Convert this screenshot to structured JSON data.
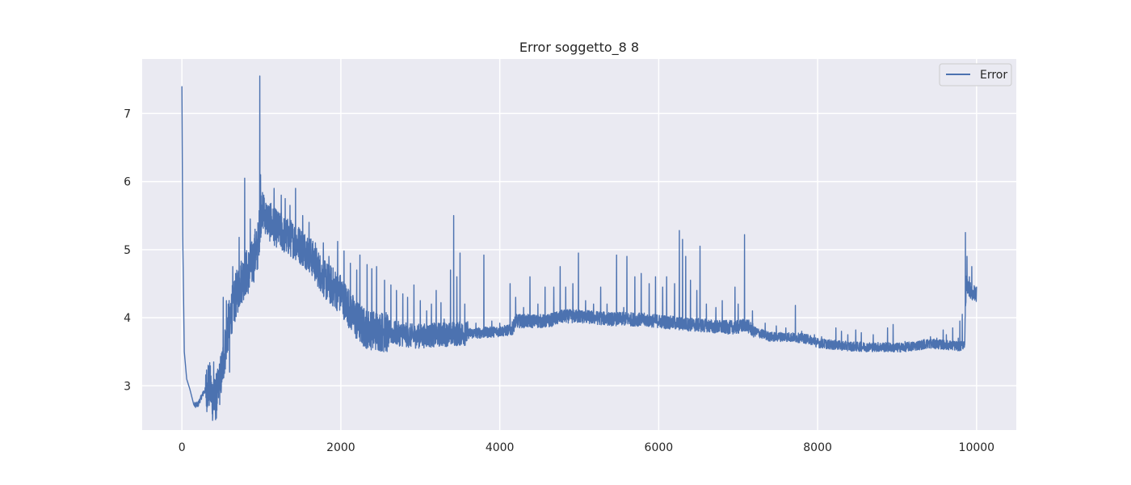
{
  "chart_data": {
    "type": "line",
    "title": "Error soggetto_8 8",
    "xlabel": "",
    "ylabel": "",
    "xlim": [
      -500,
      10500
    ],
    "ylim": [
      2.35,
      7.8
    ],
    "xticks": [
      0,
      2000,
      4000,
      6000,
      8000,
      10000
    ],
    "yticks": [
      3,
      4,
      5,
      6,
      7
    ],
    "grid": true,
    "legend_position": "top-right",
    "colors": {
      "background": "#eaeaf2",
      "grid": "#ffffff",
      "line": "#4c72b0",
      "text": "#262626"
    },
    "series": [
      {
        "name": "Error",
        "x": [
          0,
          10,
          30,
          60,
          100,
          150,
          200,
          250,
          300,
          350,
          400,
          450,
          500,
          550,
          600,
          650,
          700,
          750,
          800,
          850,
          900,
          950,
          1000,
          1050,
          1100,
          1200,
          1300,
          1400,
          1500,
          1600,
          1700,
          1800,
          1900,
          2000,
          2100,
          2200,
          2300,
          2400,
          2500,
          2600,
          2700,
          2800,
          2900,
          3000,
          3200,
          3400,
          3600,
          3800,
          4000,
          4150,
          4200,
          4400,
          4600,
          4800,
          5000,
          5200,
          5400,
          5600,
          5800,
          6000,
          6200,
          6400,
          6600,
          6800,
          7000,
          7100,
          7200,
          7400,
          7600,
          7800,
          7900,
          8000,
          8200,
          8400,
          8600,
          8800,
          9000,
          9200,
          9400,
          9600,
          9800,
          9850,
          9870,
          9900,
          9950,
          10000
        ],
        "y": [
          7.4,
          5.2,
          3.5,
          3.1,
          2.95,
          2.72,
          2.72,
          2.85,
          2.95,
          3.0,
          2.75,
          2.9,
          3.2,
          3.6,
          4.0,
          4.2,
          4.4,
          4.55,
          4.65,
          4.7,
          4.85,
          5.0,
          5.6,
          5.5,
          5.4,
          5.3,
          5.2,
          5.15,
          5.05,
          4.95,
          4.75,
          4.55,
          4.45,
          4.35,
          4.15,
          3.95,
          3.85,
          3.82,
          3.8,
          3.78,
          3.77,
          3.75,
          3.73,
          3.73,
          3.75,
          3.76,
          3.77,
          3.78,
          3.8,
          3.82,
          3.95,
          3.95,
          3.95,
          4.02,
          4.02,
          4.0,
          3.98,
          3.98,
          3.97,
          3.95,
          3.92,
          3.9,
          3.88,
          3.86,
          3.86,
          3.9,
          3.8,
          3.72,
          3.72,
          3.7,
          3.68,
          3.63,
          3.6,
          3.58,
          3.57,
          3.57,
          3.56,
          3.58,
          3.62,
          3.6,
          3.58,
          3.62,
          4.5,
          4.45,
          4.35,
          4.35
        ],
        "spikes": [
          [
            200,
            2.7
          ],
          [
            270,
            2.92
          ],
          [
            330,
            3.3
          ],
          [
            400,
            3.35
          ],
          [
            430,
            2.62
          ],
          [
            470,
            3.05
          ],
          [
            520,
            4.3
          ],
          [
            560,
            4.25
          ],
          [
            600,
            3.2
          ],
          [
            640,
            4.75
          ],
          [
            680,
            4.6
          ],
          [
            720,
            5.18
          ],
          [
            790,
            6.05
          ],
          [
            860,
            5.45
          ],
          [
            920,
            5.3
          ],
          [
            980,
            7.55
          ],
          [
            990,
            6.1
          ],
          [
            1030,
            5.8
          ],
          [
            1120,
            5.68
          ],
          [
            1160,
            5.9
          ],
          [
            1250,
            5.8
          ],
          [
            1300,
            5.75
          ],
          [
            1360,
            5.65
          ],
          [
            1430,
            5.9
          ],
          [
            1520,
            5.5
          ],
          [
            1600,
            5.4
          ],
          [
            1680,
            5.1
          ],
          [
            1780,
            5.1
          ],
          [
            1850,
            4.9
          ],
          [
            1960,
            5.12
          ],
          [
            2040,
            4.98
          ],
          [
            2120,
            4.8
          ],
          [
            2200,
            4.7
          ],
          [
            2240,
            4.92
          ],
          [
            2330,
            4.78
          ],
          [
            2390,
            4.72
          ],
          [
            2450,
            4.75
          ],
          [
            2550,
            4.55
          ],
          [
            2630,
            4.48
          ],
          [
            2700,
            4.4
          ],
          [
            2780,
            4.35
          ],
          [
            2840,
            4.3
          ],
          [
            2920,
            4.48
          ],
          [
            3000,
            4.25
          ],
          [
            3080,
            4.1
          ],
          [
            3140,
            4.2
          ],
          [
            3200,
            4.4
          ],
          [
            3260,
            4.22
          ],
          [
            3300,
            3.98
          ],
          [
            3380,
            4.7
          ],
          [
            3420,
            5.5
          ],
          [
            3460,
            4.6
          ],
          [
            3500,
            4.95
          ],
          [
            3560,
            4.2
          ],
          [
            3700,
            3.92
          ],
          [
            3800,
            4.92
          ],
          [
            3900,
            3.95
          ],
          [
            4000,
            3.92
          ],
          [
            4130,
            4.5
          ],
          [
            4200,
            4.3
          ],
          [
            4300,
            4.15
          ],
          [
            4380,
            4.6
          ],
          [
            4480,
            4.2
          ],
          [
            4570,
            4.45
          ],
          [
            4680,
            4.45
          ],
          [
            4760,
            4.75
          ],
          [
            4830,
            4.45
          ],
          [
            4920,
            4.5
          ],
          [
            4990,
            4.95
          ],
          [
            5080,
            4.25
          ],
          [
            5180,
            4.2
          ],
          [
            5270,
            4.45
          ],
          [
            5350,
            4.2
          ],
          [
            5470,
            4.92
          ],
          [
            5560,
            4.15
          ],
          [
            5600,
            4.9
          ],
          [
            5700,
            4.6
          ],
          [
            5780,
            4.65
          ],
          [
            5880,
            4.5
          ],
          [
            5960,
            4.6
          ],
          [
            6050,
            4.45
          ],
          [
            6100,
            4.6
          ],
          [
            6200,
            4.5
          ],
          [
            6260,
            5.28
          ],
          [
            6300,
            5.15
          ],
          [
            6340,
            4.9
          ],
          [
            6400,
            4.55
          ],
          [
            6480,
            4.4
          ],
          [
            6520,
            5.05
          ],
          [
            6600,
            4.2
          ],
          [
            6720,
            4.15
          ],
          [
            6800,
            4.25
          ],
          [
            6960,
            4.45
          ],
          [
            7000,
            4.2
          ],
          [
            7080,
            5.22
          ],
          [
            7180,
            4.1
          ],
          [
            7340,
            3.92
          ],
          [
            7480,
            3.88
          ],
          [
            7600,
            3.85
          ],
          [
            7720,
            4.18
          ],
          [
            7800,
            3.8
          ],
          [
            7960,
            3.75
          ],
          [
            8050,
            3.72
          ],
          [
            8230,
            3.85
          ],
          [
            8300,
            3.8
          ],
          [
            8380,
            3.75
          ],
          [
            8480,
            3.82
          ],
          [
            8550,
            3.78
          ],
          [
            8700,
            3.75
          ],
          [
            8880,
            3.85
          ],
          [
            8950,
            3.9
          ],
          [
            9100,
            3.65
          ],
          [
            9260,
            3.65
          ],
          [
            9340,
            3.68
          ],
          [
            9420,
            3.72
          ],
          [
            9500,
            3.7
          ],
          [
            9580,
            3.82
          ],
          [
            9620,
            3.75
          ],
          [
            9700,
            3.85
          ],
          [
            9770,
            3.7
          ],
          [
            9790,
            3.95
          ],
          [
            9820,
            4.05
          ],
          [
            9860,
            5.25
          ],
          [
            9880,
            4.9
          ],
          [
            9910,
            4.6
          ],
          [
            9940,
            4.75
          ],
          [
            9980,
            4.45
          ]
        ]
      }
    ]
  }
}
